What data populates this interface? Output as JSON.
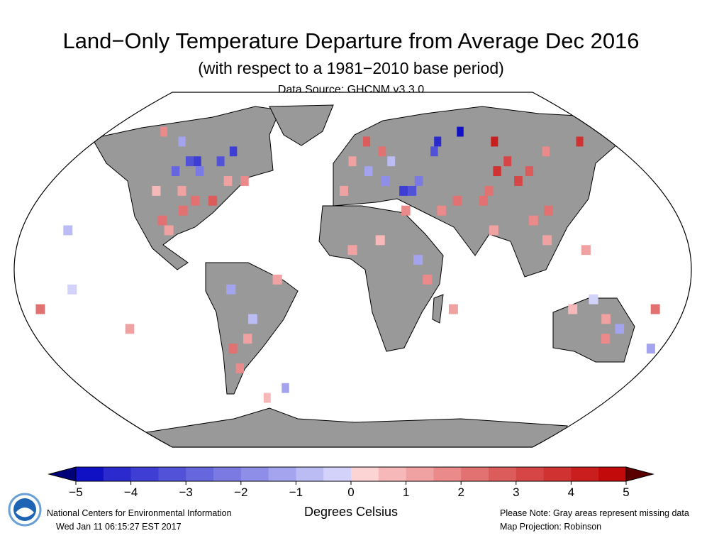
{
  "title": "Land−Only Temperature Departure from Average Dec 2016",
  "subtitle": "(with respect to a 1981−2010 base period)",
  "source": "Data Source: GHCNM v3.3.0",
  "colorbar": {
    "label": "Degrees Celsius",
    "ticks": [
      "−5",
      "−4",
      "−3",
      "−2",
      "−1",
      "0",
      "1",
      "2",
      "3",
      "4",
      "5"
    ],
    "min": -5,
    "max": 5,
    "step": 0.5,
    "colors": [
      "#1010c4",
      "#2a2ace",
      "#3e3ed4",
      "#5252d8",
      "#6666de",
      "#7a7ae2",
      "#8e8ee8",
      "#a4a4ee",
      "#bcbcf4",
      "#d2d2fa",
      "#fcd4d4",
      "#f6b8b8",
      "#f0a2a2",
      "#ea8a8a",
      "#e27272",
      "#dc5c5c",
      "#d64646",
      "#d03232",
      "#ca1e1e",
      "#c20a0a"
    ],
    "under_color": "#000078",
    "over_color": "#5a0000"
  },
  "map": {
    "land_missing_color": "#999999",
    "projection": "Robinson",
    "cells": [
      [
        55,
        -105,
        -3.2
      ],
      [
        55,
        -100,
        -3.6
      ],
      [
        50,
        -110,
        -2.6
      ],
      [
        50,
        -95,
        -2.1
      ],
      [
        60,
        -80,
        -3.7
      ],
      [
        55,
        -85,
        -3.1
      ],
      [
        65,
        -120,
        -1.2
      ],
      [
        70,
        -140,
        1.8
      ],
      [
        40,
        -100,
        1.4
      ],
      [
        35,
        -90,
        2.2
      ],
      [
        35,
        -80,
        2.6
      ],
      [
        30,
        -95,
        2.1
      ],
      [
        45,
        -75,
        1.1
      ],
      [
        40,
        -115,
        0.8
      ],
      [
        45,
        -65,
        1.6
      ],
      [
        25,
        -105,
        2.4
      ],
      [
        20,
        -100,
        1.3
      ],
      [
        20,
        -155,
        -0.6
      ],
      [
        50,
        10,
        -1.1
      ],
      [
        45,
        20,
        -1.6
      ],
      [
        40,
        30,
        -3.6
      ],
      [
        40,
        35,
        -3.1
      ],
      [
        45,
        40,
        -2.2
      ],
      [
        55,
        0,
        1.1
      ],
      [
        60,
        20,
        2.1
      ],
      [
        65,
        10,
        2.6
      ],
      [
        55,
        25,
        -0.8
      ],
      [
        40,
        -5,
        1.2
      ],
      [
        65,
        60,
        -4.2
      ],
      [
        60,
        55,
        -3.2
      ],
      [
        70,
        80,
        -4.6
      ],
      [
        65,
        100,
        4.2
      ],
      [
        55,
        100,
        3.1
      ],
      [
        50,
        110,
        2.6
      ],
      [
        45,
        100,
        3.3
      ],
      [
        50,
        90,
        3.6
      ],
      [
        40,
        80,
        2.4
      ],
      [
        35,
        75,
        2.1
      ],
      [
        60,
        130,
        1.8
      ],
      [
        65,
        160,
        3.8
      ],
      [
        30,
        110,
        2.2
      ],
      [
        25,
        100,
        1.6
      ],
      [
        20,
        77,
        1.1
      ],
      [
        35,
        60,
        2.3
      ],
      [
        30,
        50,
        1.8
      ],
      [
        15,
        105,
        1.4
      ],
      [
        10,
        125,
        1.2
      ],
      [
        10,
        0,
        1.1
      ],
      [
        5,
        35,
        -1.1
      ],
      [
        30,
        30,
        1.6
      ],
      [
        15,
        15,
        0.6
      ],
      [
        -5,
        40,
        1.9
      ],
      [
        -20,
        55,
        1.4
      ],
      [
        -25,
        140,
        1.2
      ],
      [
        -20,
        120,
        0.6
      ],
      [
        -30,
        150,
        -1.1
      ],
      [
        -35,
        145,
        1.6
      ],
      [
        -15,
        130,
        -0.4
      ],
      [
        -40,
        175,
        -1.2
      ],
      [
        -20,
        165,
        2.2
      ],
      [
        -25,
        -55,
        -0.6
      ],
      [
        -35,
        -60,
        1.2
      ],
      [
        -40,
        -70,
        2.1
      ],
      [
        -10,
        -65,
        -1.1
      ],
      [
        -5,
        -40,
        1.3
      ],
      [
        -50,
        -70,
        1.8
      ],
      [
        -20,
        -170,
        2.1
      ],
      [
        -30,
        -125,
        1.1
      ],
      [
        -10,
        -150,
        -0.5
      ],
      [
        -65,
        -60,
        0.6
      ],
      [
        -60,
        -45,
        -1.5
      ]
    ]
  },
  "footer": {
    "org": "National Centers for Environmental Information",
    "timestamp": "Wed Jan 11 06:15:27 EST 2017",
    "note": "Please Note: Gray areas represent missing data",
    "projection": "Map Projection: Robinson",
    "logo_text": "NOAA"
  }
}
